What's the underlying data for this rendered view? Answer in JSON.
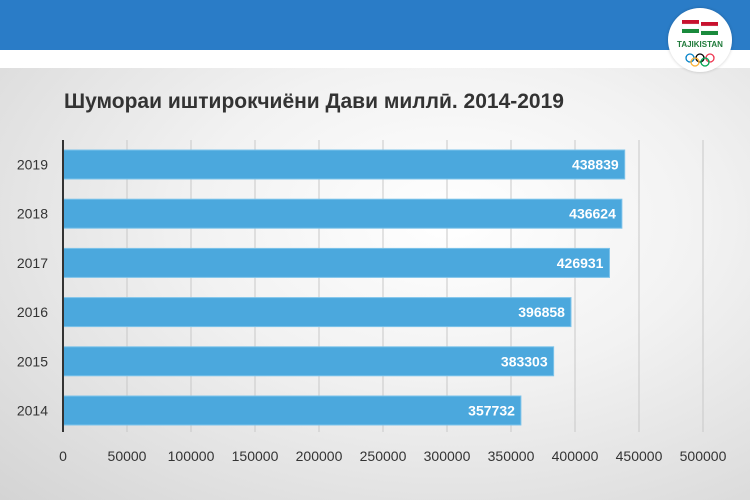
{
  "header": {
    "logo_text": "TAJIKISTAN"
  },
  "chart_data": {
    "type": "bar",
    "orientation": "horizontal",
    "title": "Шумораи иштирокчиёни Дави миллӣ. 2014-2019",
    "categories": [
      "2019",
      "2018",
      "2017",
      "2016",
      "2015",
      "2014"
    ],
    "values": [
      438839,
      436624,
      426931,
      396858,
      383303,
      357732
    ],
    "xlim": [
      0,
      500000
    ],
    "xticks": [
      "0",
      "50000",
      "100000",
      "150000",
      "200000",
      "250000",
      "300000",
      "350000",
      "400000",
      "450000",
      "500000"
    ],
    "grid": true,
    "bar_color": "#4ba8dd",
    "data_labels": true
  }
}
